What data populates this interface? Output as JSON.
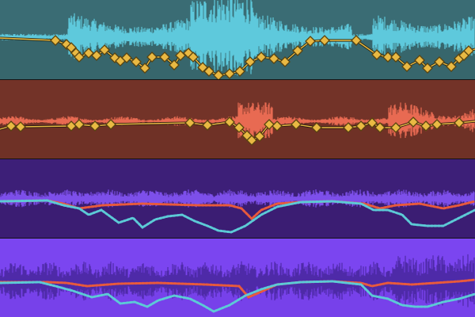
{
  "tracks": [
    {
      "id": "track-1",
      "background": "#3a6c74",
      "lowerShade": "#356268",
      "waveColor": "#5ec9dc",
      "envelopeLine": "#2a2a14",
      "nodeColor": "#e9b943",
      "nodeStroke": "#5a4410",
      "envelopeStyle": "diamonds"
    },
    {
      "id": "track-2",
      "background": "#733328",
      "lowerShade": "#6c3024",
      "waveColor": "#e86a52",
      "envelopeLine": "#2a1a10",
      "nodeColor": "#e9b943",
      "nodeStroke": "#5a4410",
      "envelopeStyle": "diamonds"
    },
    {
      "id": "track-3",
      "background": "#3d1f78",
      "lowerShade": "#3a1c70",
      "waveColor": "#7d4fea",
      "envelopeStyle": "dotted",
      "curveA": "#e85a3c",
      "curveB": "#5ccad6"
    },
    {
      "id": "track-4",
      "background": "#7b45f0",
      "lowerShade": "#7440e6",
      "waveColor": "#4e2aa8",
      "envelopeStyle": "dotted",
      "curveA": "#e85a3c",
      "curveB": "#5ccad6"
    }
  ]
}
